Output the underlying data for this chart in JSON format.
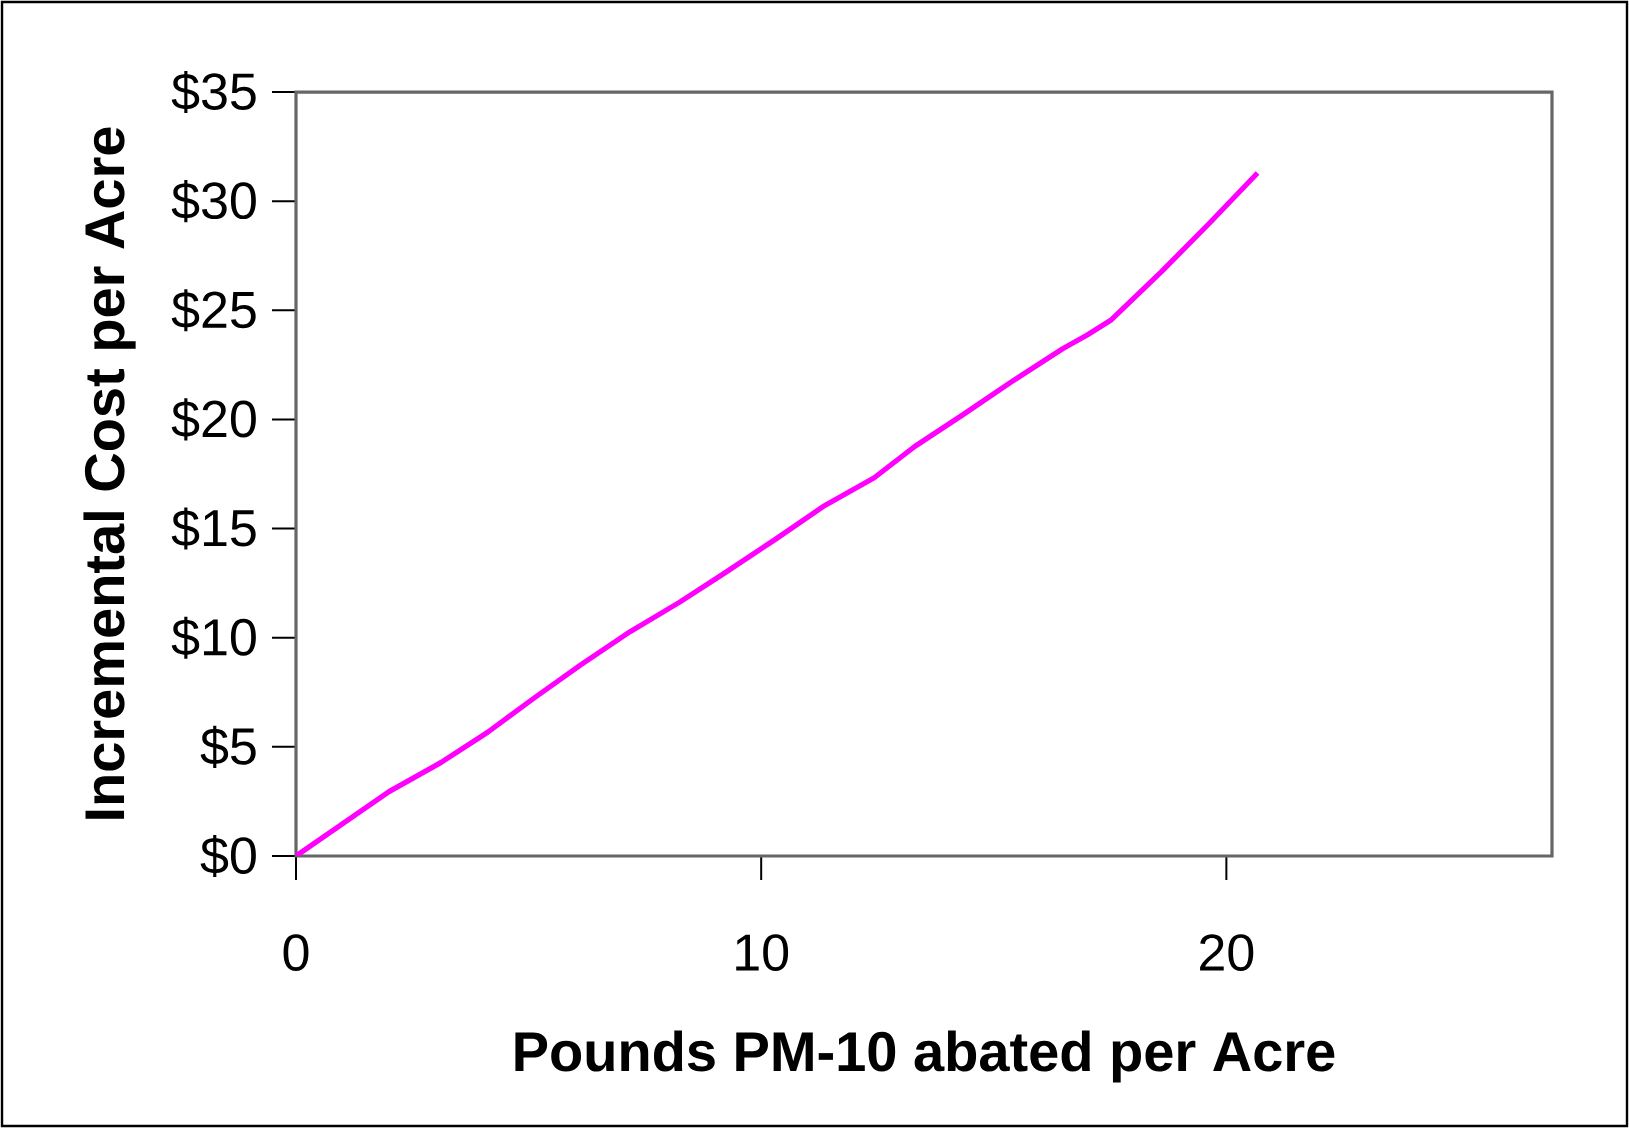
{
  "chart_data": {
    "type": "line",
    "xlabel": "Pounds PM-10 abated per Acre",
    "ylabel": "Incremental Cost per Acre",
    "x": [
      0,
      2.0,
      3.12,
      4.12,
      5.12,
      6.12,
      7.19,
      8.24,
      9.24,
      10.3,
      11.36,
      12.43,
      13.3,
      14.32,
      15.37,
      16.48,
      17.0,
      17.53,
      18.6,
      19.64,
      20.67
    ],
    "series": [
      {
        "color": "#ff00ff",
        "values": [
          0,
          2.95,
          4.29,
          5.67,
          7.24,
          8.76,
          10.29,
          11.62,
          13.0,
          14.5,
          16.05,
          17.33,
          18.76,
          20.19,
          21.71,
          23.24,
          23.86,
          24.57,
          26.76,
          29.0,
          31.29
        ]
      }
    ],
    "xlim": [
      0,
      27
    ],
    "xticks": [
      0,
      10,
      20
    ],
    "ylim": [
      0,
      35
    ],
    "yticks": [
      {
        "value": 0,
        "label": "$0"
      },
      {
        "value": 5,
        "label": "$5"
      },
      {
        "value": 10,
        "label": "$10"
      },
      {
        "value": 15,
        "label": "$15"
      },
      {
        "value": 20,
        "label": "$20"
      },
      {
        "value": 25,
        "label": "$25"
      },
      {
        "value": 30,
        "label": "$30"
      },
      {
        "value": 35,
        "label": "$35"
      }
    ],
    "grid": false,
    "marker": "none",
    "line_style": "solid"
  }
}
